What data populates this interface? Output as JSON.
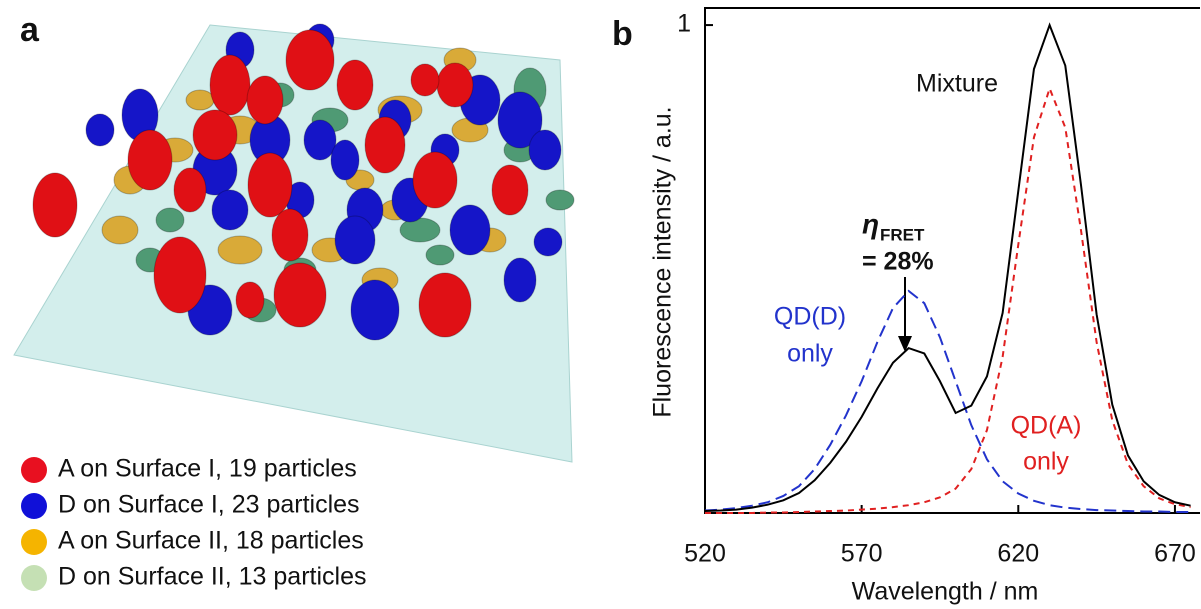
{
  "panel_a": {
    "label": "a",
    "legend": [
      {
        "label": "A on Surface I, 19 particles",
        "color": "#e81020"
      },
      {
        "label": "D on Surface I, 23 particles",
        "color": "#1010d8"
      },
      {
        "label": "A on Surface II, 18 particles",
        "color": "#f5b400"
      },
      {
        "label": "D on Surface II, 13 particles",
        "color": "#c5e0b4"
      }
    ]
  },
  "chart_data": {
    "type": "line",
    "label": "b",
    "x_label": "Wavelength / nm",
    "y_label": "Fluorescence intensity / a.u.",
    "x": [
      520,
      525,
      530,
      535,
      540,
      545,
      550,
      555,
      560,
      565,
      570,
      575,
      580,
      585,
      590,
      595,
      600,
      605,
      610,
      615,
      620,
      625,
      630,
      635,
      640,
      645,
      650,
      655,
      660,
      665,
      670,
      675
    ],
    "series": [
      {
        "name": "Mixture",
        "color": "#000000",
        "style": "solid",
        "values": [
          0.004,
          0.005,
          0.007,
          0.011,
          0.017,
          0.026,
          0.041,
          0.067,
          0.103,
          0.146,
          0.197,
          0.255,
          0.308,
          0.338,
          0.327,
          0.27,
          0.205,
          0.22,
          0.28,
          0.41,
          0.66,
          0.91,
          1.0,
          0.917,
          0.673,
          0.407,
          0.222,
          0.118,
          0.065,
          0.037,
          0.022,
          0.015
        ]
      },
      {
        "label_lines": [
          "QD(D)",
          "only"
        ],
        "color": "#2233cc",
        "style": "dashed",
        "values": [
          0.005,
          0.007,
          0.01,
          0.015,
          0.022,
          0.035,
          0.055,
          0.09,
          0.14,
          0.2,
          0.27,
          0.35,
          0.42,
          0.455,
          0.43,
          0.36,
          0.27,
          0.18,
          0.11,
          0.065,
          0.04,
          0.025,
          0.016,
          0.011,
          0.008,
          0.006,
          0.005,
          0.004,
          0.003,
          0.003,
          0.002,
          0.002
        ]
      },
      {
        "label_lines": [
          "QD(A)",
          "only"
        ],
        "color": "#e02020",
        "style": "dotted",
        "values": [
          0,
          0,
          0,
          0,
          0.001,
          0.001,
          0.002,
          0.003,
          0.004,
          0.005,
          0.007,
          0.009,
          0.012,
          0.016,
          0.022,
          0.032,
          0.05,
          0.09,
          0.17,
          0.32,
          0.55,
          0.77,
          0.87,
          0.79,
          0.58,
          0.35,
          0.19,
          0.1,
          0.055,
          0.03,
          0.018,
          0.012
        ]
      }
    ],
    "annotation": {
      "symbol": "η",
      "subscript": "FRET",
      "text": "= 28%"
    },
    "xlim": [
      520,
      678
    ],
    "ylim": [
      0,
      1.035
    ],
    "xticks": [
      520,
      570,
      620,
      670
    ],
    "yticks": [
      1
    ]
  }
}
